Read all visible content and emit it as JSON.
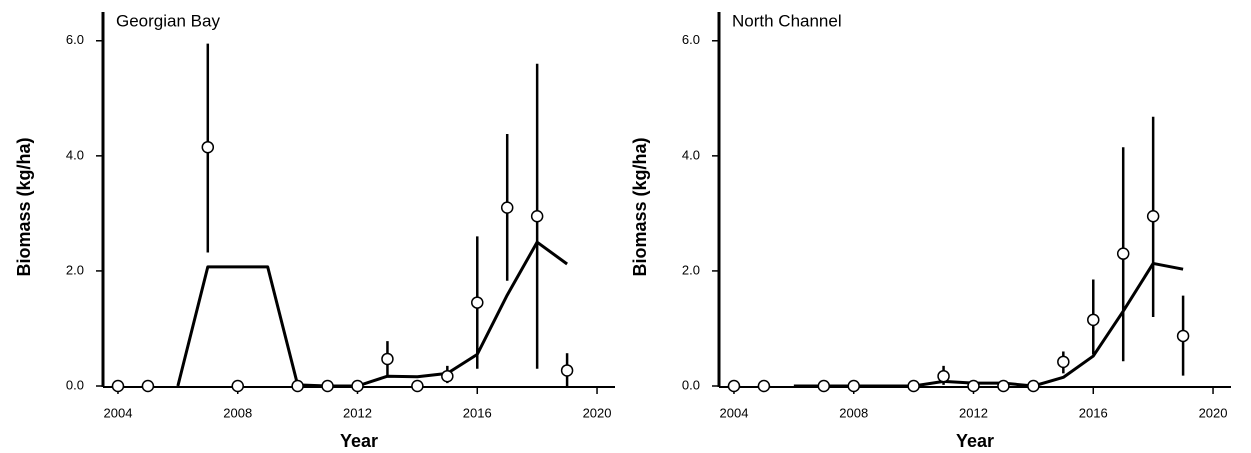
{
  "chart_data": [
    {
      "type": "scatter",
      "title": "Georgian Bay",
      "x_label": "Year",
      "y_label": "Biomass (kg/ha)",
      "x": [
        2004,
        2005,
        2006,
        2007,
        2008,
        2009,
        2010,
        2011,
        2012,
        2013,
        2014,
        2015,
        2016,
        2017,
        2018,
        2019
      ],
      "series": [
        {
          "style": "line",
          "color": "#000000",
          "values": [
            null,
            null,
            0,
            2.07,
            2.07,
            2.07,
            0.02,
            0,
            0,
            0.17,
            0.16,
            0.22,
            0.55,
            1.58,
            2.5,
            2.12
          ]
        },
        {
          "style": "points",
          "color": "#000000",
          "values": [
            0,
            0,
            null,
            4.15,
            0,
            null,
            0,
            0,
            0,
            0.47,
            0,
            0.17,
            1.45,
            3.1,
            2.95,
            0.27
          ],
          "error_low": [
            null,
            null,
            null,
            2.32,
            null,
            null,
            null,
            null,
            null,
            0.15,
            null,
            0.05,
            0.3,
            1.83,
            0.3,
            0.0
          ],
          "error_high": [
            null,
            null,
            null,
            5.95,
            null,
            null,
            null,
            null,
            null,
            0.78,
            null,
            0.35,
            2.6,
            4.38,
            5.6,
            0.57
          ]
        }
      ],
      "xlim": [
        2003.5,
        2020.6
      ],
      "xticks": [
        2004,
        2008,
        2012,
        2016,
        2020
      ],
      "ylim": [
        0,
        6.5
      ],
      "yticks": [
        {
          "value": 0,
          "label": "0.0"
        },
        {
          "value": 2,
          "label": "2.0"
        },
        {
          "value": 4,
          "label": "4.0"
        },
        {
          "value": 6,
          "label": "6.0"
        }
      ]
    },
    {
      "type": "scatter",
      "title": "North Channel",
      "x_label": "Year",
      "y_label": "Biomass (kg/ha)",
      "x": [
        2004,
        2005,
        2006,
        2007,
        2008,
        2009,
        2010,
        2011,
        2012,
        2013,
        2014,
        2015,
        2016,
        2017,
        2018,
        2019
      ],
      "series": [
        {
          "style": "line",
          "color": "#000000",
          "values": [
            null,
            null,
            0,
            0,
            0,
            0,
            0,
            0.08,
            0.05,
            0.05,
            0,
            0.15,
            0.52,
            1.3,
            2.13,
            2.03
          ]
        },
        {
          "style": "points",
          "color": "#000000",
          "values": [
            0,
            0,
            null,
            0,
            0,
            null,
            0,
            0.17,
            0,
            0,
            0,
            0.42,
            1.15,
            2.3,
            2.95,
            0.87
          ],
          "error_low": [
            null,
            null,
            null,
            null,
            null,
            null,
            null,
            0.02,
            null,
            null,
            null,
            0.22,
            0.55,
            0.43,
            1.2,
            0.18
          ],
          "error_high": [
            null,
            null,
            null,
            null,
            null,
            null,
            null,
            0.35,
            null,
            null,
            null,
            0.6,
            1.85,
            4.15,
            4.68,
            1.57
          ]
        }
      ],
      "xlim": [
        2003.5,
        2020.6
      ],
      "xticks": [
        2004,
        2008,
        2012,
        2016,
        2020
      ],
      "ylim": [
        0,
        6.5
      ],
      "yticks": [
        {
          "value": 0,
          "label": "0.0"
        },
        {
          "value": 2,
          "label": "2.0"
        },
        {
          "value": 4,
          "label": "4.0"
        },
        {
          "value": 6,
          "label": "6.0"
        }
      ]
    }
  ]
}
